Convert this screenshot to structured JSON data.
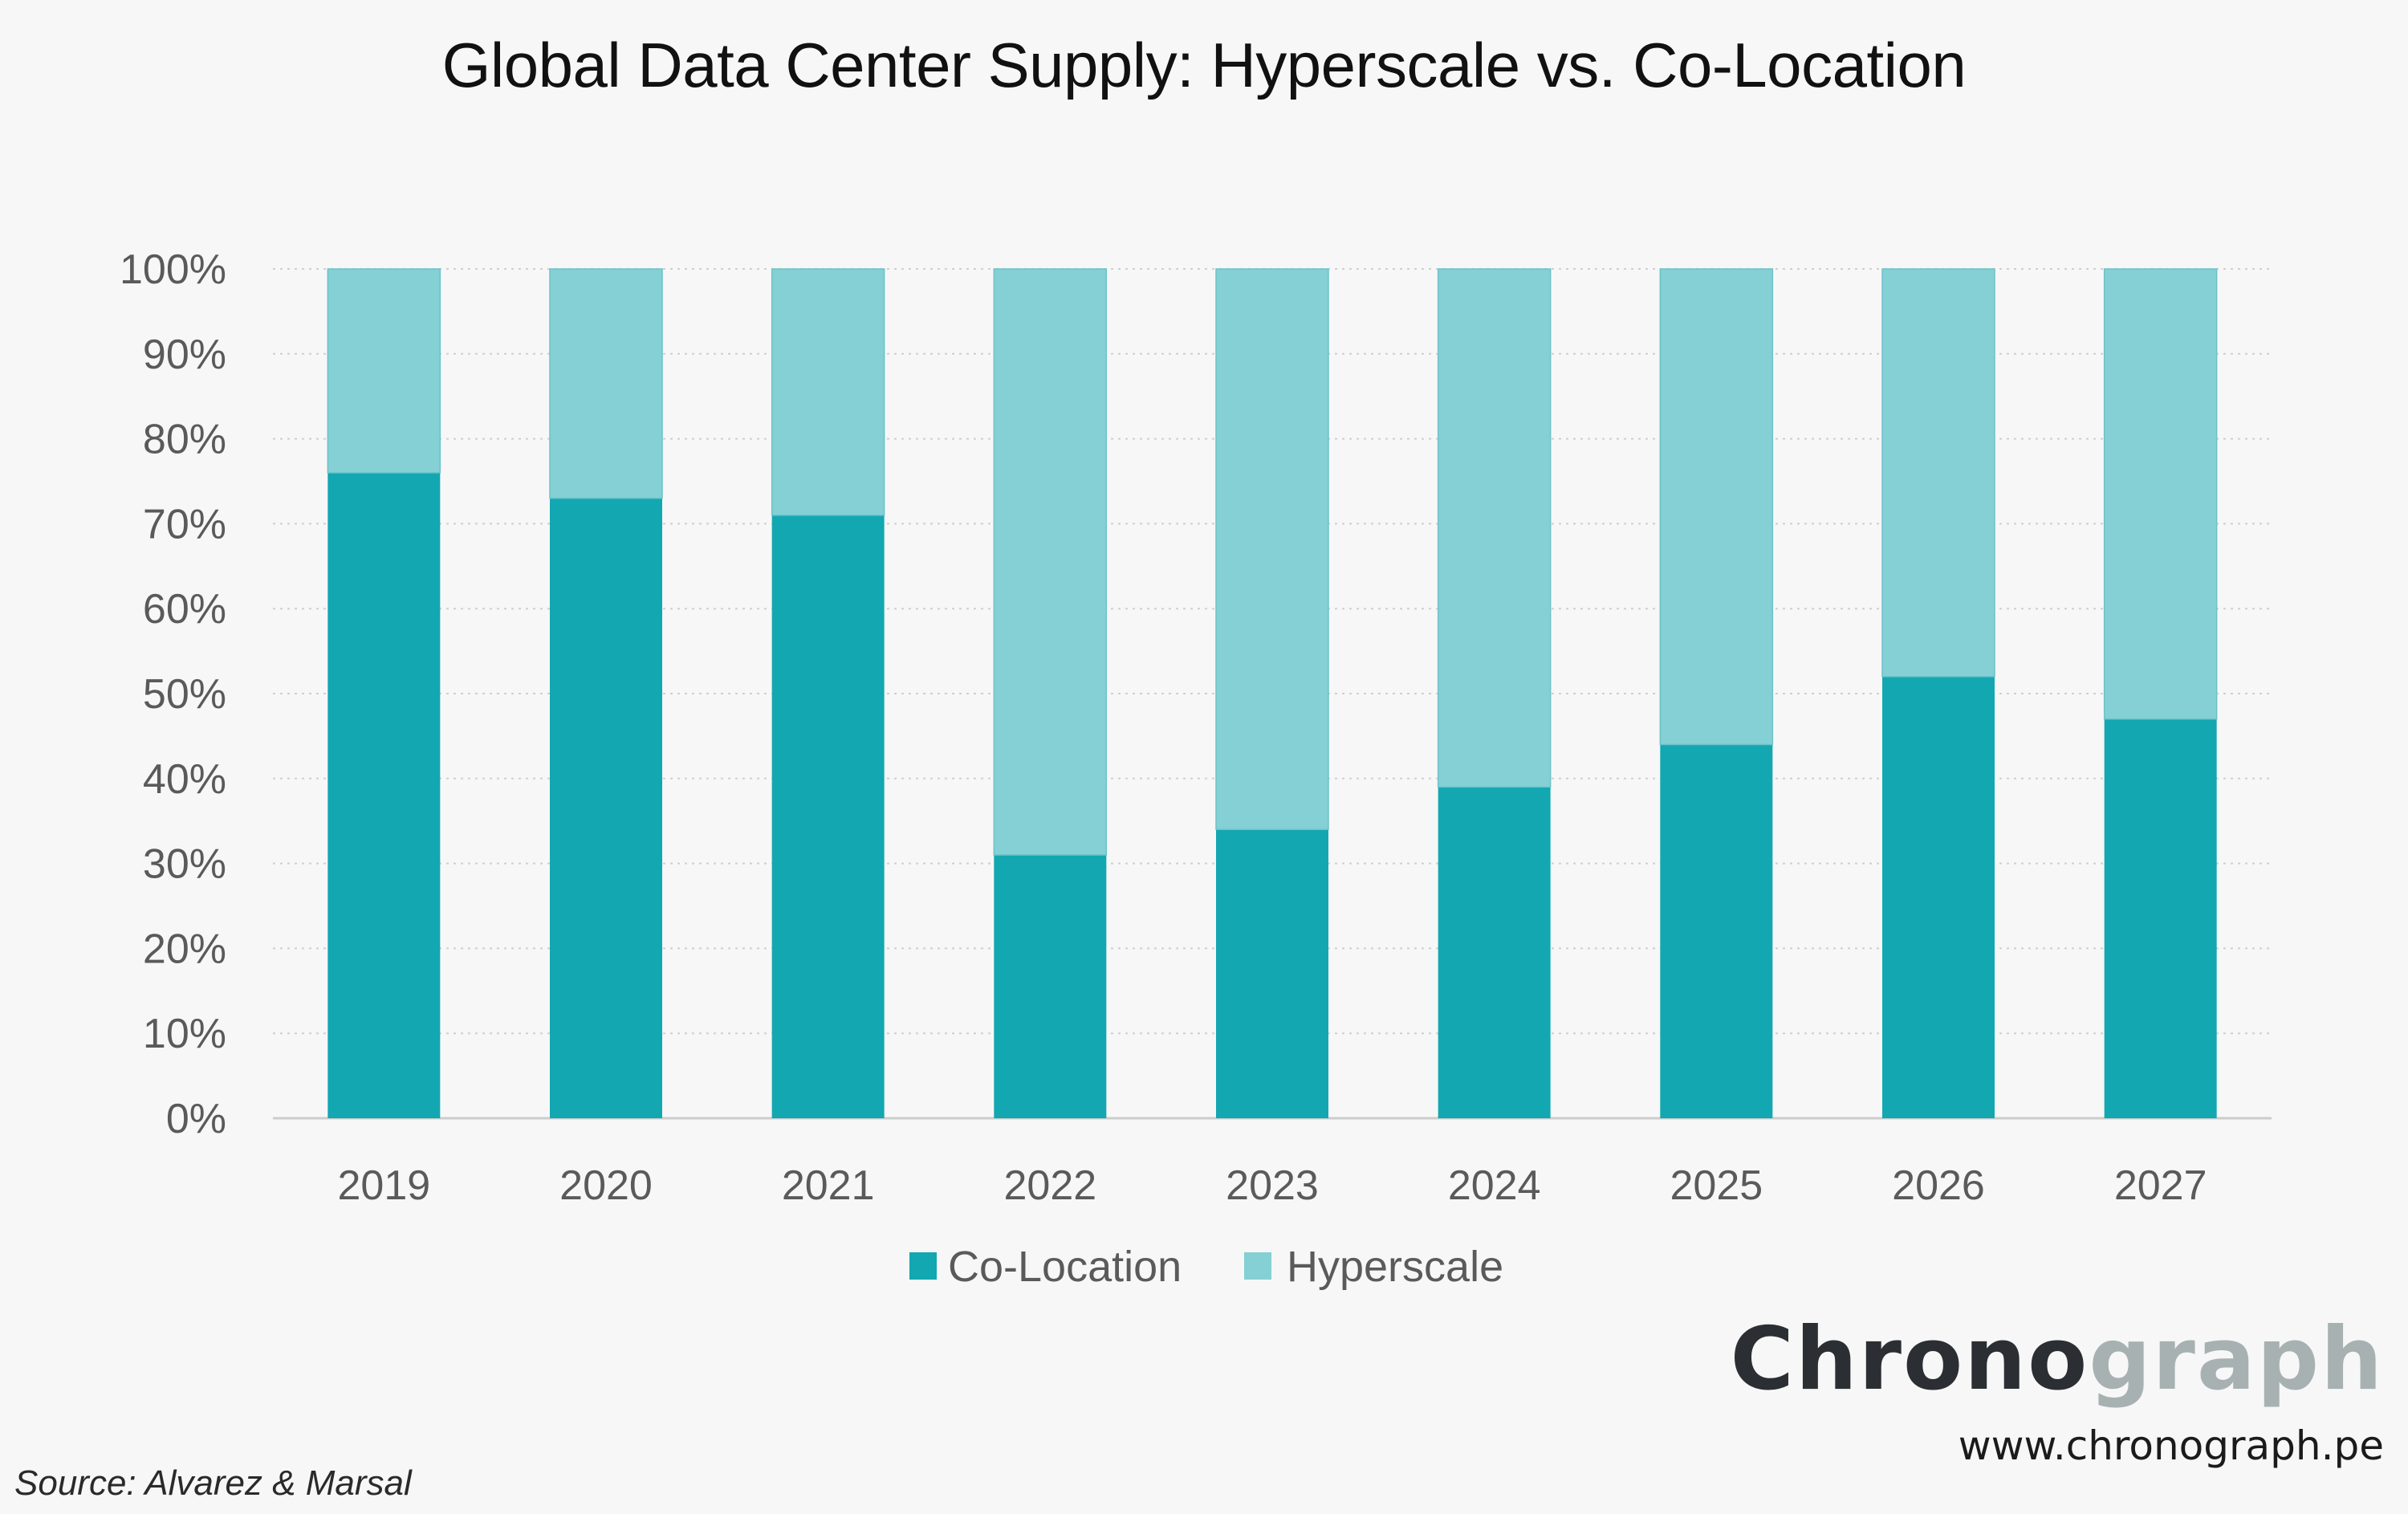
{
  "chart_data": {
    "type": "bar",
    "stacked": true,
    "title": "Global Data Center Supply: Hyperscale vs. Co-Location",
    "categories": [
      "2019",
      "2020",
      "2021",
      "2022",
      "2023",
      "2024",
      "2025",
      "2026",
      "2027"
    ],
    "series": [
      {
        "name": "Co-Location",
        "color": "#13a7b1",
        "values": [
          76,
          73,
          71,
          31,
          34,
          39,
          44,
          52,
          47
        ]
      },
      {
        "name": "Hyperscale",
        "color": "#84d0d5",
        "values": [
          24,
          27,
          29,
          69,
          66,
          61,
          56,
          48,
          53
        ]
      }
    ],
    "y_ticks": [
      "0%",
      "10%",
      "20%",
      "30%",
      "40%",
      "50%",
      "60%",
      "70%",
      "80%",
      "90%",
      "100%"
    ],
    "ylim": [
      0,
      100
    ],
    "grid": true,
    "grid_style": "dotted",
    "legend_position": "bottom",
    "xlabel": "",
    "ylabel": ""
  },
  "source": "Source: Alvarez & Marsal",
  "brand": {
    "part1": "Chrono",
    "part2": "graph",
    "website": "www.chronograph.pe"
  },
  "colors": {
    "background": "#f7f7f7",
    "grid": "#cfcfcf",
    "axis": "#cccccc"
  }
}
